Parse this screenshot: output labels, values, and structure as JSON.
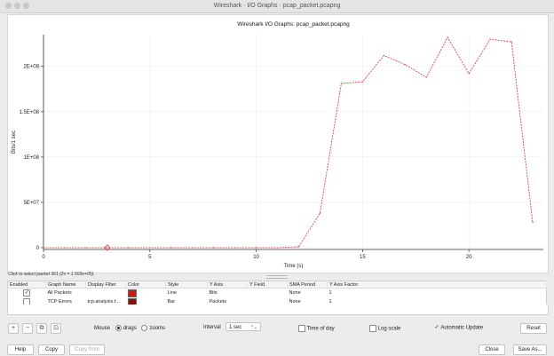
{
  "window": {
    "title": "Wireshark · I/O Graphs · pcap_packet.pcapng"
  },
  "chart_data": {
    "type": "line",
    "title": "Wireshark I/O Graphs: pcap_packet.pcapng",
    "xlabel": "Time (s)",
    "ylabel": "Bits/1 sec",
    "xlim": [
      0,
      23.5
    ],
    "ylim": [
      -2000000,
      235000000
    ],
    "x_ticks": [
      0,
      5,
      10,
      15,
      20
    ],
    "y_ticks": [
      0,
      50000000,
      100000000,
      150000000,
      200000000
    ],
    "y_tick_labels": [
      "0",
      "5E+07",
      "1E+08",
      "1.5E+08",
      "2E+08"
    ],
    "grid": true,
    "series": [
      {
        "color": "#e03030",
        "style": "dashed",
        "x": [
          0,
          1,
          2,
          3,
          4,
          5,
          6,
          7,
          8,
          9,
          10,
          11,
          12,
          13,
          14,
          15,
          16,
          17,
          18,
          19,
          20,
          21,
          22,
          23
        ],
        "y": [
          0,
          0,
          0,
          0,
          0,
          0,
          0,
          0,
          0,
          0,
          0,
          0,
          1000000,
          38000000,
          181000000,
          183000000,
          212000000,
          202000000,
          188000000,
          232000000,
          192000000,
          230000000,
          227000000,
          28000000
        ]
      }
    ],
    "marker": {
      "x": 3,
      "y": 0,
      "color": "#e03030"
    }
  },
  "status_hint": "Click to select packet 361 (2s = 1.502e+05).",
  "table": {
    "headers": [
      "Enabled",
      "Graph Name",
      "Display Filter",
      "Color",
      "Style",
      "Y Axis",
      "Y Field",
      "SMA Period",
      "Y Axis Factor"
    ],
    "rows": [
      {
        "enabled": "✓",
        "name": "All Packets",
        "filter": "",
        "color": "#d01818",
        "style": "Line",
        "y_axis": "Bits",
        "y_field": "",
        "sma": "None",
        "factor": "1"
      },
      {
        "enabled": "",
        "name": "TCP Errors",
        "filter": "tcp.analysis.f...",
        "color": "#8b0e0e",
        "style": "Bar",
        "y_axis": "Packets",
        "y_field": "",
        "sma": "None",
        "factor": "1"
      }
    ]
  },
  "toolbar": {
    "add": "+",
    "remove": "−",
    "copy": "⧉",
    "clear": "⊡",
    "mouse_label": "Mouse",
    "drags": "drags",
    "zooms": "zooms",
    "interval_label": "Interval",
    "interval_value": "1 sec",
    "time_of_day": "Time of day",
    "log_scale": "Log scale",
    "auto_update": "Automatic Update",
    "auto_update_check": "✓",
    "reset": "Reset"
  },
  "bottom": {
    "help": "Help",
    "copy": "Copy",
    "copy_from": "Copy from",
    "close": "Close",
    "save_as": "Save As..."
  }
}
